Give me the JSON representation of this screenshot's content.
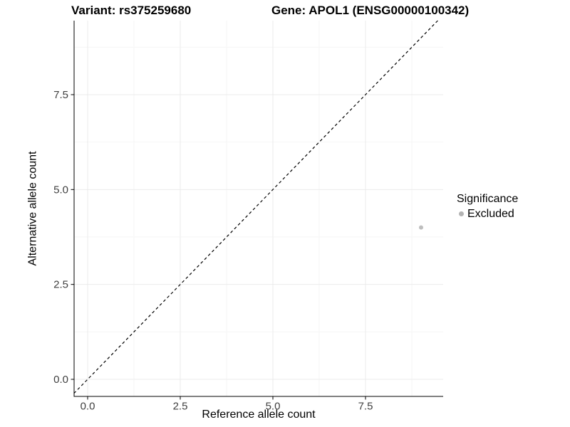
{
  "titles": {
    "left": "Variant: rs375259680",
    "right": "Gene: APOL1 (ENSG00000100342)"
  },
  "chart_data": {
    "type": "scatter",
    "xlabel": "Reference allele count",
    "ylabel": "Alternative allele count",
    "x_ticks": {
      "values": [
        0,
        2.5,
        5,
        7.5
      ],
      "labels": [
        "0.0",
        "2.5",
        "5.0",
        "7.5"
      ]
    },
    "y_ticks": {
      "values": [
        0,
        2.5,
        5,
        7.5
      ],
      "labels": [
        "0.0",
        "2.5",
        "5.0",
        "7.5"
      ]
    },
    "xlim": [
      -0.37,
      9.6
    ],
    "ylim": [
      -0.45,
      9.45
    ],
    "grid": {
      "major_color": "#ebebeb",
      "minor_color": "#f6f6f6",
      "on": true
    },
    "axis_color": "#000000",
    "points": [
      {
        "x": 9,
        "y": 4,
        "series": "Excluded"
      }
    ],
    "series": [
      {
        "name": "Excluded",
        "color": "#bebebe",
        "point_radius": 3
      }
    ],
    "reference_line": {
      "kind": "identity",
      "style": "dashed",
      "color": "#000000"
    },
    "legend": {
      "position": "right",
      "title": "Significance",
      "items": [
        {
          "label": "Excluded",
          "color": "#b3b3b3"
        }
      ]
    }
  }
}
